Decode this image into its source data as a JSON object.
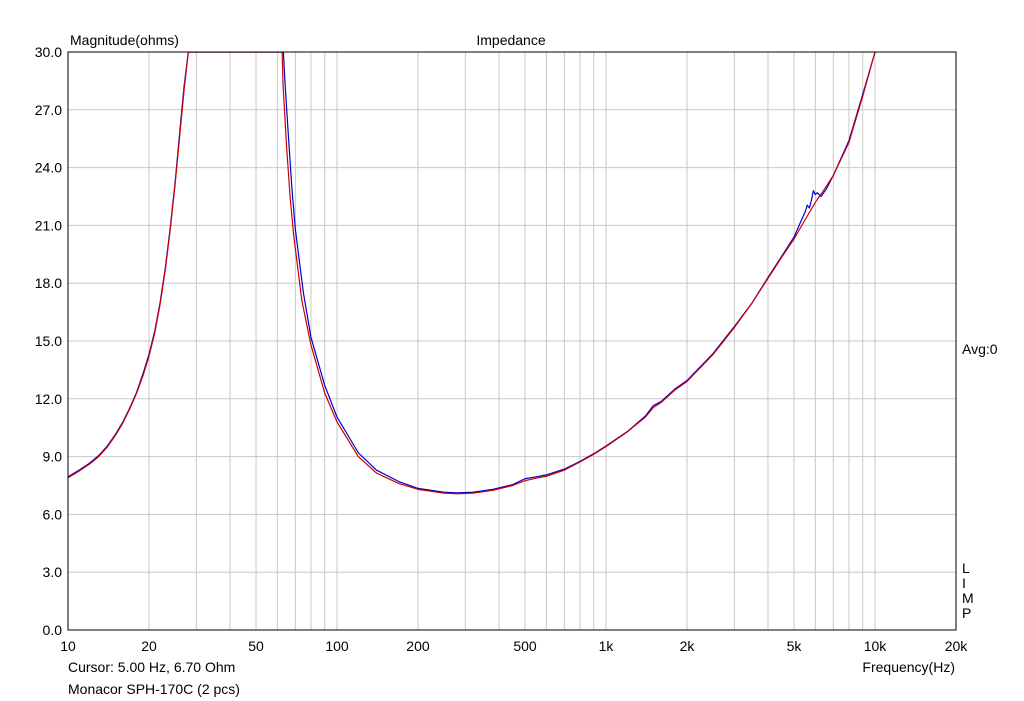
{
  "chart_data": {
    "type": "line",
    "title": "Impedance",
    "ylabel": "Magnitude(ohms)",
    "xlabel": "Frequency(Hz)",
    "x_scale": "log",
    "xlim": [
      10,
      20000
    ],
    "ylim": [
      0,
      30
    ],
    "grid": true,
    "x_ticks": [
      {
        "value": 10,
        "label": "10"
      },
      {
        "value": 20,
        "label": "20"
      },
      {
        "value": 50,
        "label": "50"
      },
      {
        "value": 100,
        "label": "100"
      },
      {
        "value": 200,
        "label": "200"
      },
      {
        "value": 500,
        "label": "500"
      },
      {
        "value": 1000,
        "label": "1k"
      },
      {
        "value": 2000,
        "label": "2k"
      },
      {
        "value": 5000,
        "label": "5k"
      },
      {
        "value": 10000,
        "label": "10k"
      },
      {
        "value": 20000,
        "label": "20k"
      }
    ],
    "y_ticks": [
      {
        "value": 0,
        "label": "0.0"
      },
      {
        "value": 3,
        "label": "3.0"
      },
      {
        "value": 6,
        "label": "6.0"
      },
      {
        "value": 9,
        "label": "9.0"
      },
      {
        "value": 12,
        "label": "12.0"
      },
      {
        "value": 15,
        "label": "15.0"
      },
      {
        "value": 18,
        "label": "18.0"
      },
      {
        "value": 21,
        "label": "21.0"
      },
      {
        "value": 24,
        "label": "24.0"
      },
      {
        "value": 27,
        "label": "27.0"
      },
      {
        "value": 30,
        "label": "30.0"
      }
    ],
    "series": [
      {
        "color": "#0000cc",
        "points": [
          [
            10,
            7.95
          ],
          [
            11,
            8.3
          ],
          [
            12,
            8.65
          ],
          [
            13,
            9.05
          ],
          [
            14,
            9.55
          ],
          [
            15,
            10.15
          ],
          [
            16,
            10.8
          ],
          [
            17,
            11.55
          ],
          [
            18,
            12.35
          ],
          [
            19,
            13.3
          ],
          [
            20,
            14.3
          ],
          [
            21,
            15.5
          ],
          [
            22,
            17.0
          ],
          [
            23,
            18.8
          ],
          [
            24,
            20.9
          ],
          [
            25,
            23.2
          ],
          [
            26,
            25.8
          ],
          [
            27,
            28.2
          ],
          [
            28,
            30.0
          ],
          [
            63.2,
            30.0
          ],
          [
            64,
            28.5
          ],
          [
            66,
            25.6
          ],
          [
            68,
            22.9
          ],
          [
            70,
            20.8
          ],
          [
            75,
            17.5
          ],
          [
            80,
            15.2
          ],
          [
            90,
            12.7
          ],
          [
            100,
            11.05
          ],
          [
            120,
            9.2
          ],
          [
            140,
            8.3
          ],
          [
            170,
            7.7
          ],
          [
            200,
            7.35
          ],
          [
            250,
            7.15
          ],
          [
            280,
            7.12
          ],
          [
            320,
            7.15
          ],
          [
            380,
            7.3
          ],
          [
            450,
            7.55
          ],
          [
            500,
            7.85
          ],
          [
            550,
            7.95
          ],
          [
            600,
            8.05
          ],
          [
            700,
            8.35
          ],
          [
            800,
            8.75
          ],
          [
            900,
            9.15
          ],
          [
            1000,
            9.55
          ],
          [
            1200,
            10.3
          ],
          [
            1400,
            11.1
          ],
          [
            1500,
            11.65
          ],
          [
            1600,
            11.85
          ],
          [
            1800,
            12.5
          ],
          [
            2000,
            12.95
          ],
          [
            2500,
            14.35
          ],
          [
            3000,
            15.75
          ],
          [
            3500,
            17.0
          ],
          [
            4000,
            18.3
          ],
          [
            4500,
            19.4
          ],
          [
            5000,
            20.4
          ],
          [
            5300,
            21.2
          ],
          [
            5500,
            21.7
          ],
          [
            5600,
            22.05
          ],
          [
            5700,
            21.9
          ],
          [
            5800,
            22.3
          ],
          [
            5900,
            22.8
          ],
          [
            6000,
            22.6
          ],
          [
            6100,
            22.7
          ],
          [
            6300,
            22.5
          ],
          [
            6600,
            22.9
          ],
          [
            7000,
            23.6
          ],
          [
            8000,
            25.4
          ],
          [
            9000,
            27.8
          ],
          [
            10000,
            30.0
          ]
        ]
      },
      {
        "color": "#cc0000",
        "points": [
          [
            10,
            7.9
          ],
          [
            11,
            8.25
          ],
          [
            12,
            8.6
          ],
          [
            13,
            9.0
          ],
          [
            14,
            9.5
          ],
          [
            15,
            10.1
          ],
          [
            16,
            10.75
          ],
          [
            17,
            11.5
          ],
          [
            18,
            12.3
          ],
          [
            19,
            13.2
          ],
          [
            20,
            14.2
          ],
          [
            21,
            15.4
          ],
          [
            22,
            16.9
          ],
          [
            23,
            18.7
          ],
          [
            24,
            20.8
          ],
          [
            25,
            23.1
          ],
          [
            26,
            25.6
          ],
          [
            27,
            28.0
          ],
          [
            28,
            30.0
          ],
          [
            62.5,
            30.0
          ],
          [
            63,
            28.3
          ],
          [
            65,
            25.0
          ],
          [
            67,
            22.4
          ],
          [
            69,
            20.5
          ],
          [
            74,
            17.1
          ],
          [
            80,
            14.8
          ],
          [
            90,
            12.3
          ],
          [
            100,
            10.8
          ],
          [
            120,
            9.0
          ],
          [
            140,
            8.15
          ],
          [
            170,
            7.6
          ],
          [
            200,
            7.3
          ],
          [
            250,
            7.1
          ],
          [
            280,
            7.07
          ],
          [
            320,
            7.1
          ],
          [
            380,
            7.25
          ],
          [
            450,
            7.5
          ],
          [
            500,
            7.75
          ],
          [
            550,
            7.88
          ],
          [
            600,
            7.98
          ],
          [
            700,
            8.3
          ],
          [
            800,
            8.72
          ],
          [
            900,
            9.12
          ],
          [
            1000,
            9.52
          ],
          [
            1200,
            10.28
          ],
          [
            1400,
            11.05
          ],
          [
            1500,
            11.55
          ],
          [
            1600,
            11.8
          ],
          [
            1800,
            12.45
          ],
          [
            2000,
            12.9
          ],
          [
            2500,
            14.3
          ],
          [
            3000,
            15.7
          ],
          [
            3500,
            17.0
          ],
          [
            4000,
            18.25
          ],
          [
            4500,
            19.35
          ],
          [
            5000,
            20.3
          ],
          [
            5500,
            21.3
          ],
          [
            6000,
            22.2
          ],
          [
            6500,
            22.9
          ],
          [
            7000,
            23.6
          ],
          [
            8000,
            25.3
          ],
          [
            9000,
            27.7
          ],
          [
            10000,
            30.0
          ]
        ]
      }
    ],
    "cursor_text": "Cursor: 5.00 Hz, 6.70 Ohm",
    "caption": "Monacor SPH-170C (2 pcs)",
    "avg_label": "Avg:0",
    "side_letters": [
      "L",
      "I",
      "M",
      "P"
    ]
  }
}
